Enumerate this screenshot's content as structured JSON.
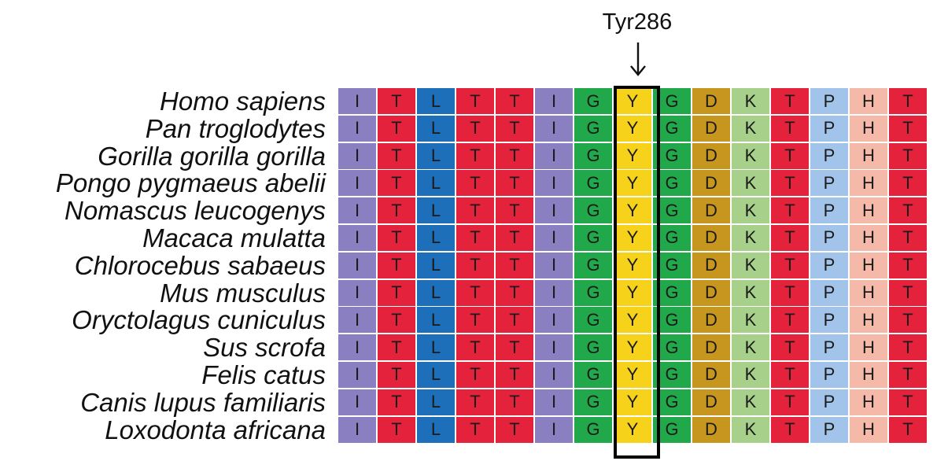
{
  "marker": {
    "label": "Tyr286",
    "column_index": 7
  },
  "species": [
    "Homo sapiens",
    "Pan troglodytes",
    "Gorilla gorilla gorilla",
    "Pongo pygmaeus abelii",
    "Nomascus leucogenys",
    "Macaca mulatta",
    "Chlorocebus sabaeus",
    "Mus musculus",
    "Oryctolagus cuniculus",
    "Sus scrofa",
    "Felis catus",
    "Canis lupus familiaris",
    "Loxodonta africana"
  ],
  "sequence": [
    "I",
    "T",
    "L",
    "T",
    "T",
    "I",
    "G",
    "Y",
    "G",
    "D",
    "K",
    "T",
    "P",
    "H",
    "T"
  ],
  "residue_colors": {
    "I": "#8a7fc1",
    "T": "#e5223c",
    "L": "#1e6fb9",
    "G": "#20a84a",
    "Y": "#f7d21a",
    "D": "#c7961e",
    "K": "#a7d08a",
    "P": "#a3c4ea",
    "H": "#f4b9a8"
  }
}
